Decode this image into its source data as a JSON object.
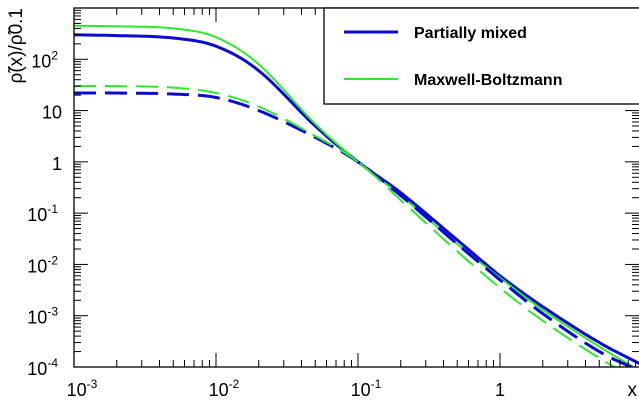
{
  "chart_data": {
    "type": "line",
    "title": "",
    "xlabel": "x",
    "ylabel": "ρ̃(x)/ρ̃0.1",
    "xscale": "log",
    "yscale": "log",
    "xlim": [
      0.001,
      10
    ],
    "ylim": [
      0.0001,
      1000
    ],
    "grid": false,
    "legend_position": "top-right",
    "x_ticks": [
      {
        "value": 0.001,
        "base": "10",
        "exp": "-3"
      },
      {
        "value": 0.01,
        "base": "10",
        "exp": "-2"
      },
      {
        "value": 0.1,
        "base": "10",
        "exp": "-1"
      },
      {
        "value": 1,
        "base": "1",
        "exp": ""
      }
    ],
    "y_ticks": [
      {
        "value": 0.0001,
        "base": "10",
        "exp": "-4"
      },
      {
        "value": 0.001,
        "base": "10",
        "exp": "-3"
      },
      {
        "value": 0.01,
        "base": "10",
        "exp": "-2"
      },
      {
        "value": 0.1,
        "base": "10",
        "exp": "-1"
      },
      {
        "value": 1,
        "base": "1",
        "exp": ""
      },
      {
        "value": 10,
        "base": "10",
        "exp": ""
      },
      {
        "value": 100,
        "base": "10",
        "exp": "2"
      }
    ],
    "x": [
      0.001,
      0.002,
      0.005,
      0.01,
      0.02,
      0.05,
      0.1,
      0.2,
      0.5,
      1,
      2,
      5,
      10
    ],
    "series": [
      {
        "name": "Partially mixed",
        "color": "#0a0ad0",
        "style": "solid",
        "values": [
          300,
          290,
          260,
          180,
          60,
          5,
          1,
          0.25,
          0.03,
          0.006,
          0.0015,
          0.0003,
          0.00011
        ]
      },
      {
        "name": "Maxwell-Boltzmann",
        "color": "#2ee82e",
        "style": "solid",
        "values": [
          450,
          440,
          400,
          270,
          80,
          5.5,
          1,
          0.22,
          0.025,
          0.0055,
          0.0013,
          0.00025,
          8e-05
        ]
      },
      {
        "name": "",
        "color": "#0a0ad0",
        "style": "dashed",
        "values": [
          22,
          22,
          21,
          18,
          10,
          3,
          1,
          0.22,
          0.025,
          0.005,
          0.0011,
          0.0002,
          8e-05
        ]
      },
      {
        "name": "",
        "color": "#2ee82e",
        "style": "dashed",
        "values": [
          30,
          30,
          28,
          22,
          12,
          3.2,
          1,
          0.18,
          0.018,
          0.0035,
          0.0008,
          0.00015,
          5e-05
        ]
      }
    ],
    "legend": [
      {
        "label": "Partially mixed",
        "color": "#0a0ad0"
      },
      {
        "label": "Maxwell-Boltzmann",
        "color": "#2ee82e"
      }
    ]
  }
}
